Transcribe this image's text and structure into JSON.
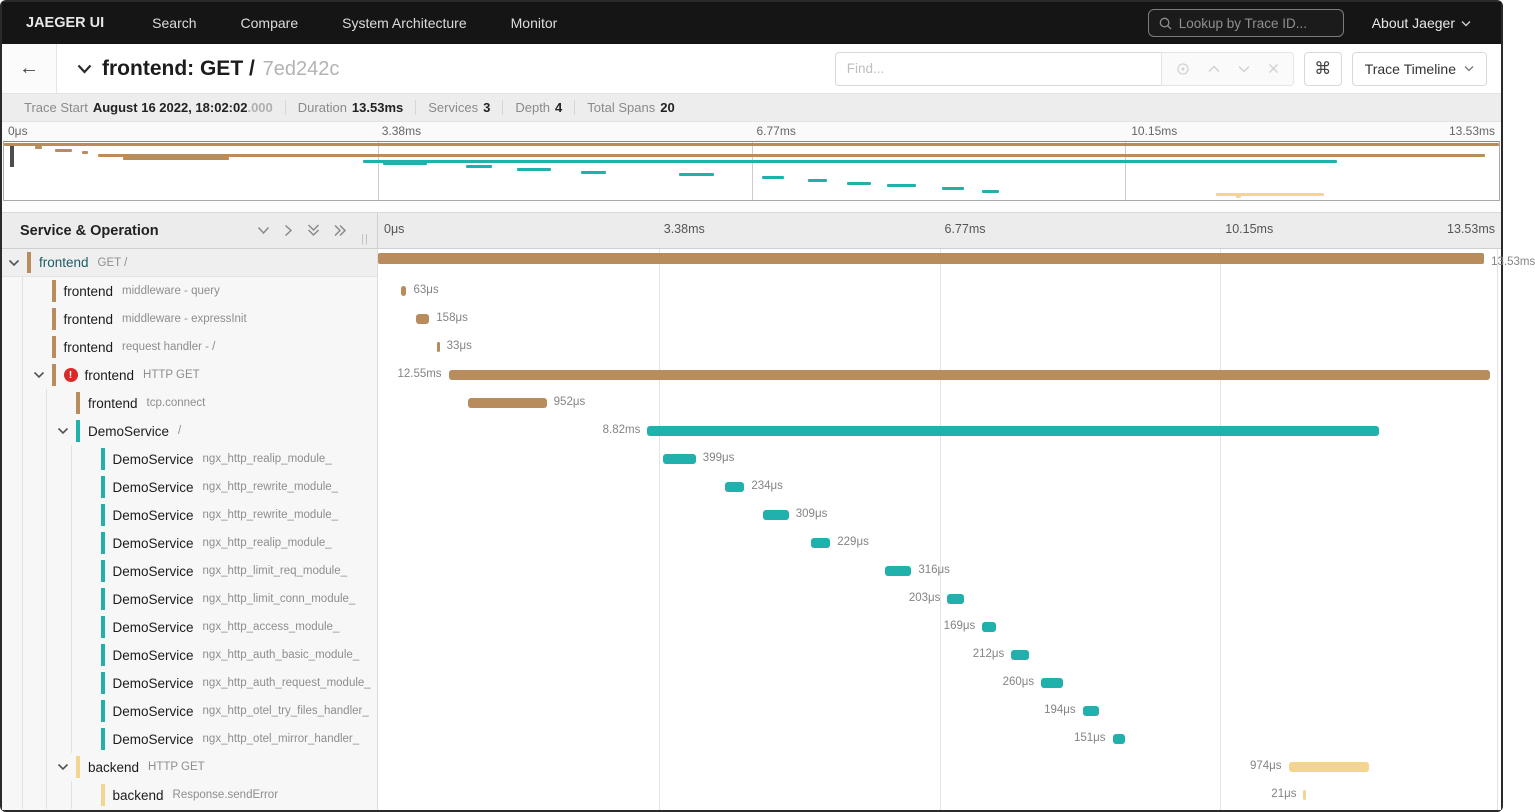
{
  "nav": {
    "brand": "JAEGER UI",
    "items": [
      "Search",
      "Compare",
      "System Architecture",
      "Monitor"
    ],
    "lookup_placeholder": "Lookup by Trace ID...",
    "about_label": "About Jaeger"
  },
  "trace_header": {
    "title": "frontend: GET /",
    "trace_id": "7ed242c",
    "find_placeholder": "Find...",
    "shortcut_button": "⌘",
    "view_button": "Trace Timeline"
  },
  "summary": {
    "items": [
      {
        "label": "Trace Start",
        "value": "August 16 2022, 18:02:02",
        "suffix": ".000"
      },
      {
        "label": "Duration",
        "value": "13.53ms",
        "suffix": ""
      },
      {
        "label": "Services",
        "value": "3",
        "suffix": ""
      },
      {
        "label": "Depth",
        "value": "4",
        "suffix": ""
      },
      {
        "label": "Total Spans",
        "value": "20",
        "suffix": ""
      }
    ]
  },
  "sidebar": {
    "title": "Service & Operation"
  },
  "timeline": {
    "duration_ms": 13.53,
    "ticks": [
      "0μs",
      "3.38ms",
      "6.77ms",
      "10.15ms",
      "13.53ms"
    ]
  },
  "colors": {
    "brown": "#b88c5c",
    "teal": "#21b1ac",
    "yellow": "#f3d58f",
    "error_red": "#db2828"
  },
  "spans": [
    {
      "service": "frontend",
      "operation": "GET /",
      "depth": 0,
      "color": "brown",
      "start_ms": 0,
      "duration_ms": 13.53,
      "duration_label": "13.53ms",
      "label_side": "right",
      "expandable": true,
      "error": false,
      "root": true
    },
    {
      "service": "frontend",
      "operation": "middleware - query",
      "depth": 1,
      "color": "brown",
      "start_ms": 0.28,
      "duration_ms": 0.063,
      "duration_label": "63μs",
      "label_side": "right",
      "expandable": false,
      "error": false
    },
    {
      "service": "frontend",
      "operation": "middleware - expressInit",
      "depth": 1,
      "color": "brown",
      "start_ms": 0.46,
      "duration_ms": 0.158,
      "duration_label": "158μs",
      "label_side": "right",
      "expandable": false,
      "error": false
    },
    {
      "service": "frontend",
      "operation": "request handler - /",
      "depth": 1,
      "color": "brown",
      "start_ms": 0.71,
      "duration_ms": 0.033,
      "duration_label": "33μs",
      "label_side": "right",
      "expandable": false,
      "error": false
    },
    {
      "service": "frontend",
      "operation": "HTTP GET",
      "depth": 1,
      "color": "brown",
      "start_ms": 0.85,
      "duration_ms": 12.55,
      "duration_label": "12.55ms",
      "label_side": "left",
      "expandable": true,
      "error": true
    },
    {
      "service": "frontend",
      "operation": "tcp.connect",
      "depth": 2,
      "color": "brown",
      "start_ms": 1.08,
      "duration_ms": 0.952,
      "duration_label": "952μs",
      "label_side": "right",
      "expandable": false,
      "error": false
    },
    {
      "service": "DemoService",
      "operation": "/",
      "depth": 2,
      "color": "teal",
      "start_ms": 3.245,
      "duration_ms": 8.82,
      "duration_label": "8.82ms",
      "label_side": "left",
      "expandable": true,
      "error": false
    },
    {
      "service": "DemoService",
      "operation": "ngx_http_realip_module_",
      "depth": 3,
      "color": "teal",
      "start_ms": 3.43,
      "duration_ms": 0.399,
      "duration_label": "399μs",
      "label_side": "right",
      "expandable": false,
      "error": false
    },
    {
      "service": "DemoService",
      "operation": "ngx_http_rewrite_module_",
      "depth": 3,
      "color": "teal",
      "start_ms": 4.18,
      "duration_ms": 0.234,
      "duration_label": "234μs",
      "label_side": "right",
      "expandable": false,
      "error": false
    },
    {
      "service": "DemoService",
      "operation": "ngx_http_rewrite_module_",
      "depth": 3,
      "color": "teal",
      "start_ms": 4.64,
      "duration_ms": 0.309,
      "duration_label": "309μs",
      "label_side": "right",
      "expandable": false,
      "error": false
    },
    {
      "service": "DemoService",
      "operation": "ngx_http_realip_module_",
      "depth": 3,
      "color": "teal",
      "start_ms": 5.22,
      "duration_ms": 0.229,
      "duration_label": "229μs",
      "label_side": "right",
      "expandable": false,
      "error": false
    },
    {
      "service": "DemoService",
      "operation": "ngx_http_limit_req_module_",
      "depth": 3,
      "color": "teal",
      "start_ms": 6.11,
      "duration_ms": 0.316,
      "duration_label": "316μs",
      "label_side": "right",
      "expandable": false,
      "error": false
    },
    {
      "service": "DemoService",
      "operation": "ngx_http_limit_conn_module_",
      "depth": 3,
      "color": "teal",
      "start_ms": 6.86,
      "duration_ms": 0.203,
      "duration_label": "203μs",
      "label_side": "left",
      "expandable": false,
      "error": false
    },
    {
      "service": "DemoService",
      "operation": "ngx_http_access_module_",
      "depth": 3,
      "color": "teal",
      "start_ms": 7.28,
      "duration_ms": 0.169,
      "duration_label": "169μs",
      "label_side": "left",
      "expandable": false,
      "error": false
    },
    {
      "service": "DemoService",
      "operation": "ngx_http_auth_basic_module_",
      "depth": 3,
      "color": "teal",
      "start_ms": 7.63,
      "duration_ms": 0.212,
      "duration_label": "212μs",
      "label_side": "left",
      "expandable": false,
      "error": false
    },
    {
      "service": "DemoService",
      "operation": "ngx_http_auth_request_module_",
      "depth": 3,
      "color": "teal",
      "start_ms": 7.99,
      "duration_ms": 0.26,
      "duration_label": "260μs",
      "label_side": "left",
      "expandable": false,
      "error": false
    },
    {
      "service": "DemoService",
      "operation": "ngx_http_otel_try_files_handler_",
      "depth": 3,
      "color": "teal",
      "start_ms": 8.49,
      "duration_ms": 0.194,
      "duration_label": "194μs",
      "label_side": "left",
      "expandable": false,
      "error": false
    },
    {
      "service": "DemoService",
      "operation": "ngx_http_otel_mirror_handler_",
      "depth": 3,
      "color": "teal",
      "start_ms": 8.85,
      "duration_ms": 0.151,
      "duration_label": "151μs",
      "label_side": "left",
      "expandable": false,
      "error": false
    },
    {
      "service": "backend",
      "operation": "HTTP GET",
      "depth": 2,
      "color": "yellow",
      "start_ms": 10.97,
      "duration_ms": 0.974,
      "duration_label": "974μs",
      "label_side": "left",
      "expandable": true,
      "error": false
    },
    {
      "service": "backend",
      "operation": "Response.sendError",
      "depth": 3,
      "color": "yellow",
      "start_ms": 11.15,
      "duration_ms": 0.021,
      "duration_label": "21μs",
      "label_side": "left",
      "expandable": false,
      "error": false
    }
  ]
}
